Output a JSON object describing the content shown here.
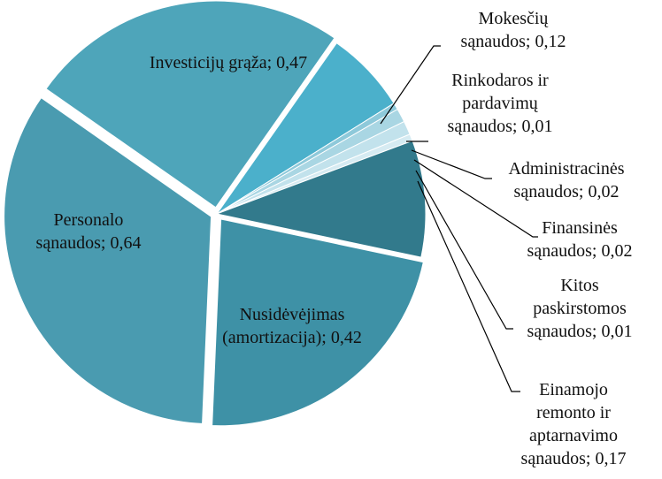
{
  "chart_data": {
    "type": "pie",
    "categories": [
      "Investicijų grąža",
      "Mokesčių sąnaudos",
      "Rinkodaros ir pardavimų sąnaudos",
      "Administracinės sąnaudos",
      "Finansinės sąnaudos",
      "Kitos paskirstomos sąnaudos",
      "Einamojo remonto ir aptarnavimo sąnaudos",
      "Nusidėvėjimas (amortizacija)",
      "Personalo sąnaudos"
    ],
    "values": [
      0.47,
      0.12,
      0.01,
      0.02,
      0.02,
      0.01,
      0.17,
      0.42,
      0.64
    ],
    "value_labels": [
      "0,47",
      "0,12",
      "0,01",
      "0,02",
      "0,02",
      "0,01",
      "0,17",
      "0,42",
      "0,64"
    ],
    "separator": ";",
    "colors": [
      "#4ea5ba",
      "#4bb0cb",
      "#8ec9da",
      "#a9d6e3",
      "#c2e2ec",
      "#d6ebf2",
      "#327a8c",
      "#3e91a6",
      "#4a9bb0"
    ]
  }
}
